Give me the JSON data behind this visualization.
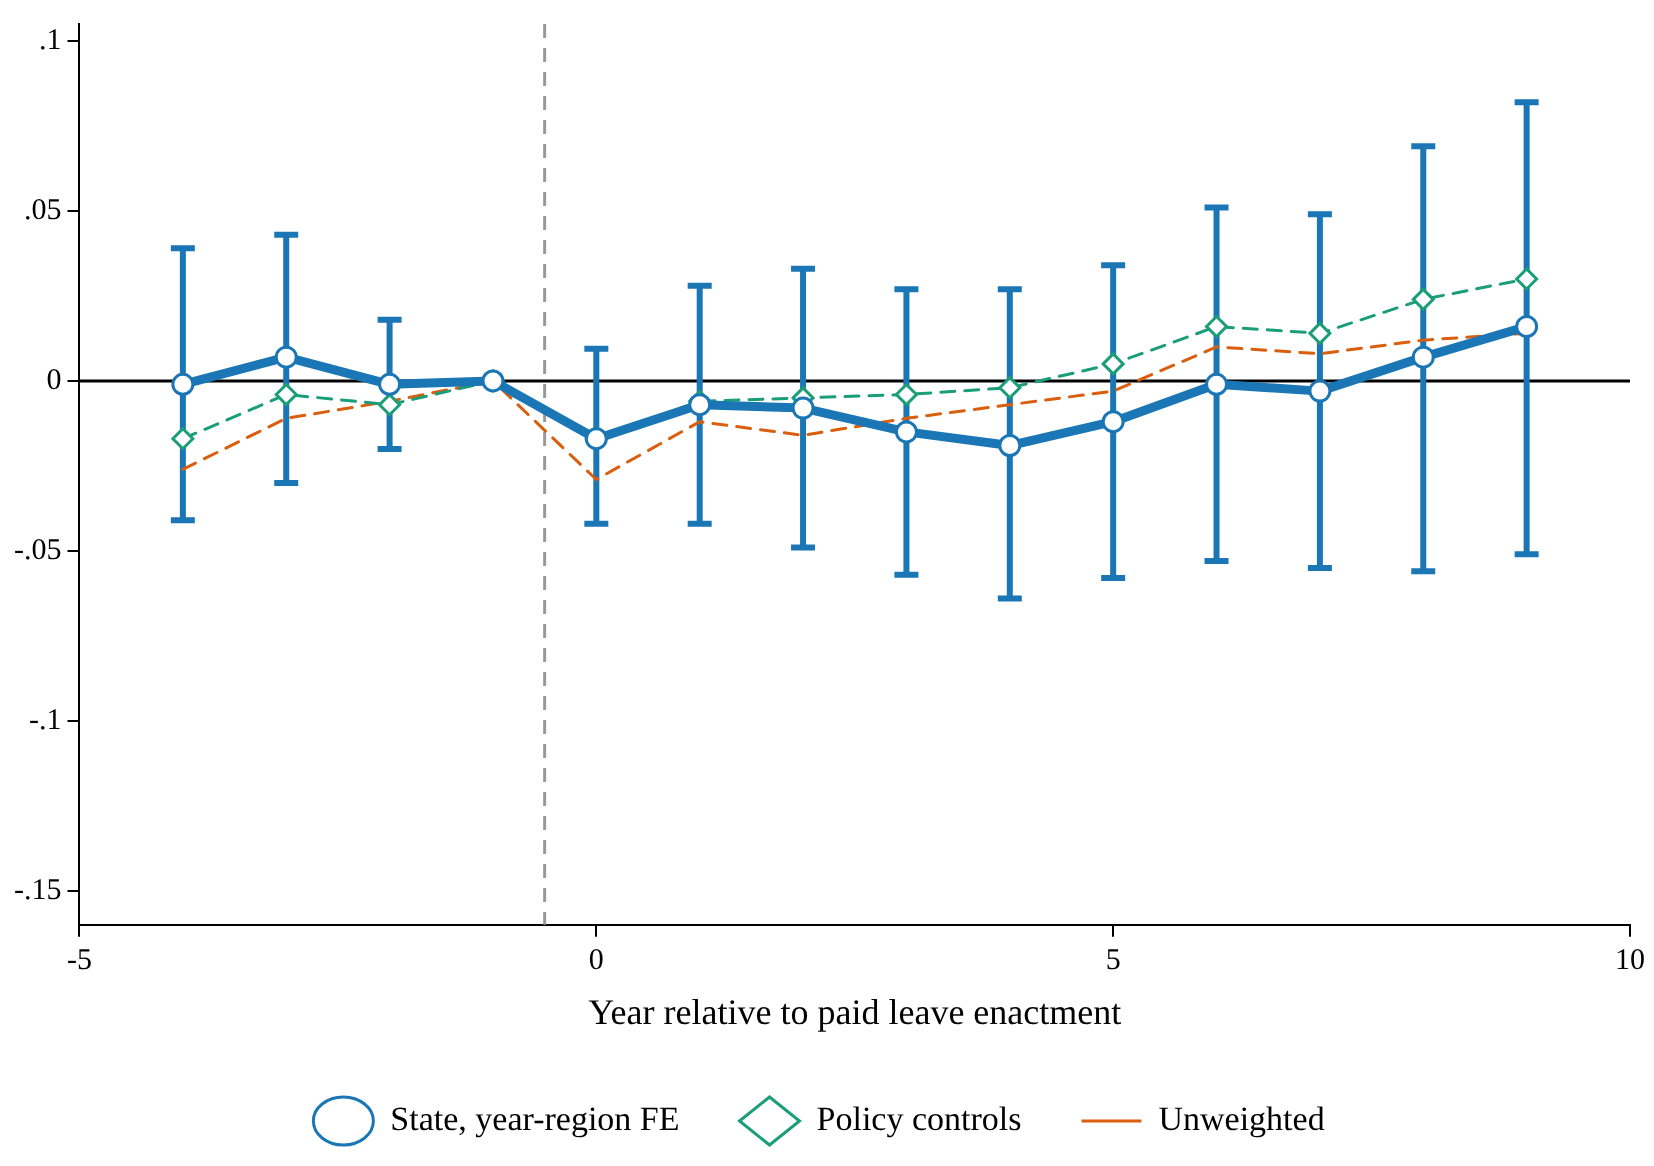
{
  "chart_data": {
    "type": "line",
    "xlabel": "Year relative to paid leave enactment",
    "x": [
      -4,
      -3,
      -2,
      -1,
      0,
      1,
      2,
      3,
      4,
      5,
      6,
      7,
      8,
      9
    ],
    "xlim": [
      -5,
      10
    ],
    "xticks": [
      -5,
      0,
      5,
      10
    ],
    "ylim": [
      -0.16,
      0.105
    ],
    "yticks": [
      {
        "value": -0.15,
        "label": "-.15"
      },
      {
        "value": -0.1,
        "label": "-.1"
      },
      {
        "value": -0.05,
        "label": "-.05"
      },
      {
        "value": 0,
        "label": "0"
      },
      {
        "value": 0.05,
        "label": ".05"
      },
      {
        "value": 0.1,
        "label": ".1"
      }
    ],
    "grid": false,
    "legend": "bottom",
    "ref_lines": [
      {
        "axis": "y",
        "value": 0,
        "color": "#000000",
        "line_style": "solid"
      },
      {
        "axis": "x",
        "value": -0.5,
        "color": "#999999",
        "line_style": "dashed"
      }
    ],
    "series": [
      {
        "name": "State, year-region FE",
        "color": "#1a76b4",
        "marker": "circle",
        "line_style": "solid",
        "values": [
          -0.001,
          0.007,
          -0.001,
          0,
          -0.017,
          -0.007,
          -0.008,
          -0.015,
          -0.019,
          -0.012,
          -0.001,
          -0.003,
          0.007,
          0.016
        ],
        "errors": [
          [
            -0.041,
            0.039
          ],
          [
            -0.03,
            0.043
          ],
          [
            -0.02,
            0.018
          ],
          null,
          [
            -0.042,
            0.0095
          ],
          [
            -0.042,
            0.028
          ],
          [
            -0.049,
            0.033
          ],
          [
            -0.057,
            0.027
          ],
          [
            -0.064,
            0.027
          ],
          [
            -0.058,
            0.034
          ],
          [
            -0.053,
            0.051
          ],
          [
            -0.055,
            0.049
          ],
          [
            -0.056,
            0.069
          ],
          [
            -0.051,
            0.082
          ]
        ]
      },
      {
        "name": "Policy controls",
        "color": "#1a9e77",
        "marker": "diamond",
        "line_style": "dashed",
        "values": [
          -0.017,
          -0.004,
          -0.007,
          0,
          -0.017,
          -0.006,
          -0.005,
          -0.004,
          -0.002,
          0.005,
          0.016,
          0.014,
          0.024,
          0.03
        ]
      },
      {
        "name": "Unweighted",
        "color": "#d95f0e",
        "marker": "none",
        "line_style": "dashed",
        "values": [
          -0.026,
          -0.011,
          -0.006,
          0,
          -0.029,
          -0.012,
          -0.016,
          -0.011,
          -0.007,
          -0.003,
          0.01,
          0.008,
          0.012,
          0.014
        ]
      }
    ]
  }
}
